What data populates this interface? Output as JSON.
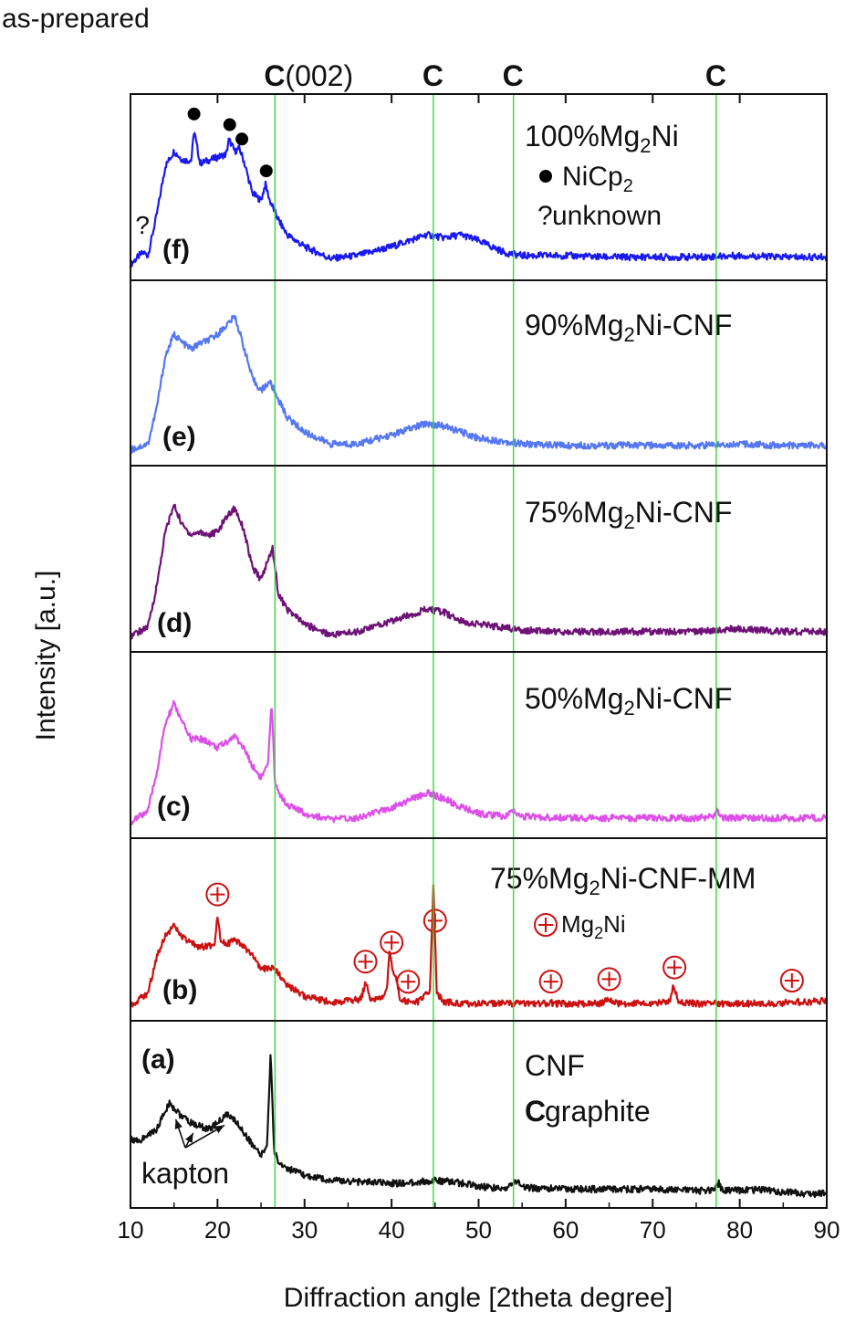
{
  "figure": {
    "header": "as-prepared",
    "xlabel": "Diffraction angle [2theta degree]",
    "ylabel": "Intensity [a.u.]"
  },
  "chart_data": {
    "type": "line",
    "xlim": [
      10,
      90
    ],
    "x_ticks": [
      10,
      20,
      30,
      40,
      50,
      60,
      70,
      80,
      90
    ],
    "grid": false,
    "stacked_panels": true,
    "reference_lines": {
      "color": "#33dd33",
      "positions": [
        26.6,
        44.8,
        54.0,
        77.3
      ],
      "labels": [
        {
          "bold": "C",
          "rest": "(002)"
        },
        {
          "bold": "C",
          "rest": ""
        },
        {
          "bold": "C",
          "rest": ""
        },
        {
          "bold": "C",
          "rest": ""
        }
      ]
    },
    "panels": [
      {
        "id": "f",
        "tag": "(f)",
        "color": "#1a1aee",
        "label_parts": [
          "100%Mg",
          "2",
          "Ni"
        ],
        "legend": [
          {
            "symbol": "●",
            "parts": [
              "NiCp",
              "2",
              ""
            ]
          },
          {
            "symbol": "?",
            "parts": [
              " unknown",
              "",
              ""
            ]
          }
        ],
        "x": [
          10,
          11,
          11.5,
          12,
          13,
          14,
          15,
          16,
          17,
          17.3,
          18,
          19,
          20,
          21,
          21.3,
          22,
          22.5,
          23,
          24,
          25,
          25.5,
          26,
          27,
          28,
          30,
          33,
          36,
          40,
          44,
          46,
          48,
          50,
          53,
          55,
          60,
          65,
          70,
          75,
          80,
          85,
          90
        ],
        "y": [
          0.02,
          0.08,
          0.1,
          0.08,
          0.35,
          0.68,
          0.78,
          0.72,
          0.72,
          0.92,
          0.7,
          0.72,
          0.74,
          0.76,
          0.86,
          0.78,
          0.8,
          0.72,
          0.5,
          0.45,
          0.56,
          0.45,
          0.32,
          0.22,
          0.14,
          0.06,
          0.08,
          0.14,
          0.22,
          0.2,
          0.22,
          0.18,
          0.1,
          0.08,
          0.08,
          0.07,
          0.07,
          0.07,
          0.08,
          0.07,
          0.07
        ],
        "peak_markers": [
          {
            "x": 17.3,
            "symbol": "●"
          },
          {
            "x": 21.4,
            "symbol": "●"
          },
          {
            "x": 22.8,
            "symbol": "●"
          },
          {
            "x": 25.6,
            "symbol": "●"
          },
          {
            "x": 11.3,
            "symbol": "?"
          }
        ]
      },
      {
        "id": "e",
        "tag": "(e)",
        "color": "#5577f2",
        "label_parts": [
          "90%Mg",
          "2",
          "Ni-CNF"
        ],
        "legend": [],
        "x": [
          10,
          12,
          13,
          14,
          15,
          16,
          17,
          18,
          19,
          20,
          21,
          22,
          23,
          24,
          25,
          26,
          27,
          28,
          30,
          33,
          36,
          40,
          44,
          46,
          48,
          50,
          55,
          60,
          65,
          70,
          75,
          80,
          85,
          90
        ],
        "y": [
          0.02,
          0.06,
          0.3,
          0.65,
          0.8,
          0.74,
          0.7,
          0.74,
          0.76,
          0.8,
          0.86,
          0.92,
          0.72,
          0.5,
          0.42,
          0.48,
          0.36,
          0.24,
          0.14,
          0.06,
          0.06,
          0.12,
          0.2,
          0.18,
          0.14,
          0.1,
          0.06,
          0.05,
          0.05,
          0.05,
          0.05,
          0.06,
          0.05,
          0.05
        ],
        "peak_markers": []
      },
      {
        "id": "d",
        "tag": "(d)",
        "color": "#6e1277",
        "label_parts": [
          "75%Mg",
          "2",
          "Ni-CNF"
        ],
        "legend": [],
        "x": [
          10,
          12,
          13,
          14,
          15,
          16,
          17,
          18,
          19,
          20,
          21,
          22,
          23,
          24,
          25,
          26,
          26.3,
          27,
          28,
          30,
          33,
          36,
          40,
          44,
          46,
          48,
          50,
          55,
          60,
          65,
          70,
          75,
          80,
          85,
          90
        ],
        "y": [
          0.02,
          0.08,
          0.35,
          0.72,
          0.9,
          0.76,
          0.7,
          0.72,
          0.7,
          0.72,
          0.82,
          0.88,
          0.74,
          0.48,
          0.4,
          0.56,
          0.62,
          0.3,
          0.2,
          0.1,
          0.03,
          0.05,
          0.12,
          0.2,
          0.18,
          0.12,
          0.1,
          0.06,
          0.05,
          0.05,
          0.05,
          0.05,
          0.07,
          0.05,
          0.05
        ],
        "peak_markers": []
      },
      {
        "id": "c",
        "tag": "(c)",
        "color": "#dd4fe8",
        "label_parts": [
          "50%Mg",
          "2",
          "Ni-CNF"
        ],
        "legend": [],
        "x": [
          10,
          12,
          13,
          14,
          15,
          16,
          17,
          18,
          19,
          20,
          21,
          22,
          23,
          24,
          25,
          25.8,
          26.2,
          26.6,
          27,
          28,
          30,
          33,
          36,
          40,
          44,
          46,
          48,
          50,
          53,
          54,
          55,
          60,
          65,
          70,
          75,
          77,
          77.3,
          78,
          80,
          85,
          90
        ],
        "y": [
          0.02,
          0.1,
          0.35,
          0.68,
          0.82,
          0.68,
          0.58,
          0.58,
          0.56,
          0.52,
          0.56,
          0.6,
          0.52,
          0.4,
          0.32,
          0.4,
          0.82,
          0.3,
          0.22,
          0.14,
          0.08,
          0.04,
          0.05,
          0.12,
          0.22,
          0.18,
          0.12,
          0.08,
          0.06,
          0.1,
          0.06,
          0.05,
          0.05,
          0.05,
          0.05,
          0.06,
          0.1,
          0.05,
          0.05,
          0.05,
          0.05
        ],
        "peak_markers": []
      },
      {
        "id": "b",
        "tag": "(b)",
        "color": "#cc1111",
        "label_parts": [
          "75%Mg",
          "2",
          "Ni-CNF-MM"
        ],
        "legend": [
          {
            "symbol": "⊕",
            "parts": [
              " Mg",
              "2",
              "Ni"
            ]
          }
        ],
        "x": [
          10,
          12,
          13,
          14,
          15,
          16,
          17,
          18,
          19,
          19.7,
          20,
          20.3,
          21,
          22,
          23,
          24,
          25,
          26,
          27,
          28,
          30,
          33,
          35,
          36.5,
          37,
          37.5,
          38,
          39,
          39.5,
          39.8,
          40.2,
          40.6,
          41,
          42,
          43,
          44.4,
          44.8,
          45.2,
          46,
          48,
          50,
          55,
          58,
          58.2,
          58.5,
          60,
          64,
          65,
          66,
          70,
          72,
          72.4,
          73,
          75,
          80,
          85,
          86,
          87,
          90
        ],
        "y": [
          0.02,
          0.1,
          0.35,
          0.5,
          0.56,
          0.48,
          0.44,
          0.42,
          0.42,
          0.45,
          0.64,
          0.48,
          0.44,
          0.46,
          0.42,
          0.36,
          0.26,
          0.28,
          0.24,
          0.16,
          0.08,
          0.04,
          0.05,
          0.06,
          0.18,
          0.07,
          0.05,
          0.08,
          0.16,
          0.4,
          0.22,
          0.2,
          0.06,
          0.04,
          0.04,
          0.12,
          0.82,
          0.1,
          0.04,
          0.03,
          0.03,
          0.03,
          0.03,
          0.05,
          0.03,
          0.03,
          0.03,
          0.06,
          0.03,
          0.03,
          0.05,
          0.16,
          0.04,
          0.03,
          0.03,
          0.03,
          0.05,
          0.04,
          0.05
        ],
        "peak_markers": [
          {
            "x": 20.0,
            "symbol": "⊕"
          },
          {
            "x": 37.0,
            "symbol": "⊕"
          },
          {
            "x": 40.0,
            "symbol": "⊕"
          },
          {
            "x": 41.9,
            "symbol": "⊕"
          },
          {
            "x": 45.0,
            "symbol": "⊕"
          },
          {
            "x": 58.3,
            "symbol": "⊕"
          },
          {
            "x": 65.0,
            "symbol": "⊕"
          },
          {
            "x": 72.5,
            "symbol": "⊕"
          },
          {
            "x": 86.0,
            "symbol": "⊕"
          }
        ]
      },
      {
        "id": "a",
        "tag": "(a)",
        "color": "#111111",
        "label_parts": [
          "CNF",
          "",
          ""
        ],
        "label2": {
          "bold": "C",
          "rest": " graphite"
        },
        "annotation": "kapton",
        "annotation_targets": [
          15.2,
          17.2,
          20.8
        ],
        "legend": [],
        "x": [
          10,
          11,
          12,
          13,
          14,
          14.5,
          15,
          16,
          17,
          18,
          19,
          20,
          21,
          22,
          23,
          24,
          25,
          25.7,
          26.1,
          26.5,
          27,
          28,
          30,
          33,
          36,
          40,
          42,
          45,
          48,
          50,
          53,
          54,
          54.5,
          55,
          60,
          65,
          70,
          75,
          77,
          77.3,
          77.6,
          78,
          80,
          83,
          85,
          88,
          90
        ],
        "y": [
          0.38,
          0.36,
          0.4,
          0.44,
          0.56,
          0.62,
          0.58,
          0.52,
          0.48,
          0.46,
          0.44,
          0.48,
          0.54,
          0.5,
          0.42,
          0.34,
          0.26,
          0.34,
          0.95,
          0.3,
          0.22,
          0.18,
          0.13,
          0.1,
          0.09,
          0.08,
          0.08,
          0.1,
          0.08,
          0.06,
          0.04,
          0.08,
          0.1,
          0.05,
          0.04,
          0.04,
          0.04,
          0.03,
          0.03,
          0.06,
          0.08,
          0.03,
          0.03,
          0.04,
          0.02,
          0.01,
          0.01
        ],
        "peak_markers": []
      }
    ]
  }
}
